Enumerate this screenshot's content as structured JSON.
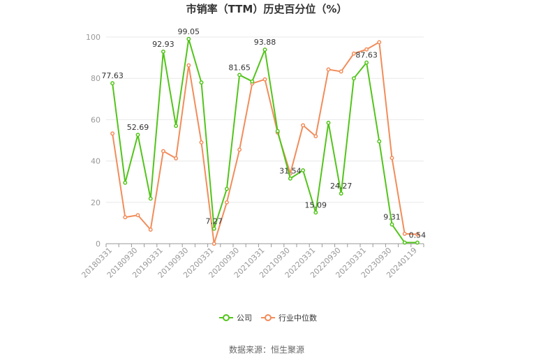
{
  "chart_data": {
    "type": "line",
    "title": "市销率（TTM）历史百分位（%）",
    "ylim": [
      0,
      100
    ],
    "yticks": [
      0,
      20,
      40,
      60,
      80,
      100
    ],
    "grid": true,
    "legend_position": "bottom",
    "x_tick_labels": [
      "20180331",
      "20180930",
      "20190331",
      "20190930",
      "20200331",
      "20200930",
      "20210331",
      "20210930",
      "20220331",
      "20220930",
      "20230331",
      "20230930",
      "20240119"
    ],
    "series": [
      {
        "name": "公司",
        "color": "#52c41a",
        "values": [
          77.63,
          29.5,
          52.69,
          21.8,
          92.93,
          57.0,
          99.05,
          78.0,
          7.27,
          26.5,
          81.65,
          78.5,
          93.88,
          54.5,
          31.54,
          35.5,
          15.09,
          58.5,
          24.27,
          80.0,
          87.63,
          49.5,
          9.31,
          0.54,
          0.54
        ],
        "labels": [
          "77.63",
          "",
          "52.69",
          "",
          "92.93",
          "",
          "99.05",
          "",
          "7.27",
          "",
          "81.65",
          "",
          "93.88",
          "",
          "31.54",
          "",
          "15.09",
          "",
          "24.27",
          "",
          "87.63",
          "",
          "9.31",
          "",
          "0.54"
        ]
      },
      {
        "name": "行业中位数",
        "color": "#f28c5a",
        "values": [
          53.3,
          12.8,
          13.8,
          6.8,
          44.8,
          41.3,
          86.3,
          49.0,
          0.0,
          20.0,
          45.5,
          77.5,
          79.5,
          53.8,
          34.0,
          57.3,
          52.0,
          84.3,
          83.3,
          92.0,
          94.0,
          97.5,
          41.5,
          4.8,
          4.5
        ]
      }
    ]
  },
  "source_text": "数据来源：恒生聚源"
}
